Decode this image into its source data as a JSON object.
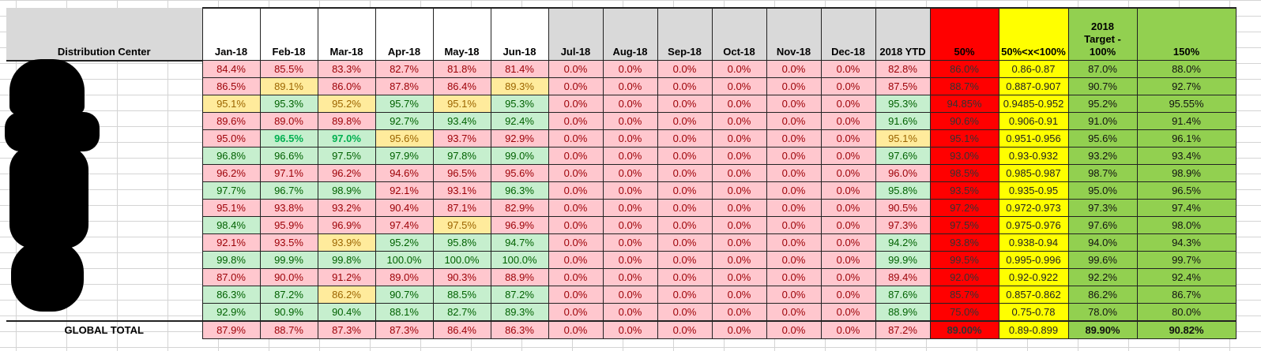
{
  "sheet": {
    "dc_header": "Distribution Center",
    "month_headers": [
      "Jan-18",
      "Feb-18",
      "Mar-18",
      "Apr-18",
      "May-18",
      "Jun-18",
      "Jul-18",
      "Aug-18",
      "Sep-18",
      "Oct-18",
      "Nov-18",
      "Dec-18",
      "2018 YTD"
    ],
    "target_headers": [
      "50%",
      "50%<x<100%",
      "2018 Target - 100%",
      "150%"
    ],
    "target_header_lines": {
      "t100": [
        "2018",
        "Target -",
        "100%"
      ]
    },
    "total_label": "GLOBAL TOTAL",
    "colors": {
      "red_fill": "#ffc7ce",
      "yellow_fill": "#ffeb9c",
      "green_fill": "#c6efce",
      "target_50": "#ff0000",
      "target_mid": "#ffff00",
      "target_100": "#92d050",
      "future_header": "#d9d9d9"
    },
    "rows": [
      {
        "dc": "",
        "cells": [
          [
            "84.4%",
            "r"
          ],
          [
            "85.5%",
            "r"
          ],
          [
            "83.3%",
            "r"
          ],
          [
            "82.7%",
            "r"
          ],
          [
            "81.8%",
            "r"
          ],
          [
            "81.4%",
            "r"
          ],
          [
            "0.0%",
            "r"
          ],
          [
            "0.0%",
            "r"
          ],
          [
            "0.0%",
            "r"
          ],
          [
            "0.0%",
            "r"
          ],
          [
            "0.0%",
            "r"
          ],
          [
            "0.0%",
            "r"
          ],
          [
            "82.8%",
            "r"
          ]
        ],
        "targets": [
          "86.0%",
          "0.86-0.87",
          "87.0%",
          "88.0%"
        ]
      },
      {
        "dc": "",
        "cells": [
          [
            "86.5%",
            "r"
          ],
          [
            "89.1%",
            "y"
          ],
          [
            "86.0%",
            "r"
          ],
          [
            "87.8%",
            "r"
          ],
          [
            "86.4%",
            "r"
          ],
          [
            "89.3%",
            "y"
          ],
          [
            "0.0%",
            "r"
          ],
          [
            "0.0%",
            "r"
          ],
          [
            "0.0%",
            "r"
          ],
          [
            "0.0%",
            "r"
          ],
          [
            "0.0%",
            "r"
          ],
          [
            "0.0%",
            "r"
          ],
          [
            "87.5%",
            "r"
          ]
        ],
        "targets": [
          "88.7%",
          "0.887-0.907",
          "90.7%",
          "92.7%"
        ]
      },
      {
        "dc": "",
        "cells": [
          [
            "95.1%",
            "y"
          ],
          [
            "95.3%",
            "g"
          ],
          [
            "95.2%",
            "y"
          ],
          [
            "95.7%",
            "g"
          ],
          [
            "95.1%",
            "y"
          ],
          [
            "95.3%",
            "g"
          ],
          [
            "0.0%",
            "r"
          ],
          [
            "0.0%",
            "r"
          ],
          [
            "0.0%",
            "r"
          ],
          [
            "0.0%",
            "r"
          ],
          [
            "0.0%",
            "r"
          ],
          [
            "0.0%",
            "r"
          ],
          [
            "95.3%",
            "g"
          ]
        ],
        "targets": [
          "94.85%",
          "0.9485-0.952",
          "95.2%",
          "95.55%"
        ]
      },
      {
        "dc": "",
        "cells": [
          [
            "89.6%",
            "r"
          ],
          [
            "89.0%",
            "r"
          ],
          [
            "89.8%",
            "r"
          ],
          [
            "92.7%",
            "g"
          ],
          [
            "93.4%",
            "g"
          ],
          [
            "92.4%",
            "g"
          ],
          [
            "0.0%",
            "r"
          ],
          [
            "0.0%",
            "r"
          ],
          [
            "0.0%",
            "r"
          ],
          [
            "0.0%",
            "r"
          ],
          [
            "0.0%",
            "r"
          ],
          [
            "0.0%",
            "r"
          ],
          [
            "91.6%",
            "g"
          ]
        ],
        "targets": [
          "90.6%",
          "0.906-0.91",
          "91.0%",
          "91.4%"
        ]
      },
      {
        "dc": "",
        "cells": [
          [
            "95.0%",
            "r"
          ],
          [
            "96.5%",
            "gb"
          ],
          [
            "97.0%",
            "gb"
          ],
          [
            "95.6%",
            "y"
          ],
          [
            "93.7%",
            "r"
          ],
          [
            "92.9%",
            "r"
          ],
          [
            "0.0%",
            "r"
          ],
          [
            "0.0%",
            "r"
          ],
          [
            "0.0%",
            "r"
          ],
          [
            "0.0%",
            "r"
          ],
          [
            "0.0%",
            "r"
          ],
          [
            "0.0%",
            "r"
          ],
          [
            "95.1%",
            "y"
          ]
        ],
        "targets": [
          "95.1%",
          "0.951-0.956",
          "95.6%",
          "96.1%"
        ]
      },
      {
        "dc": "",
        "cells": [
          [
            "96.8%",
            "g"
          ],
          [
            "96.6%",
            "g"
          ],
          [
            "97.5%",
            "g"
          ],
          [
            "97.9%",
            "g"
          ],
          [
            "97.8%",
            "g"
          ],
          [
            "99.0%",
            "g"
          ],
          [
            "0.0%",
            "r"
          ],
          [
            "0.0%",
            "r"
          ],
          [
            "0.0%",
            "r"
          ],
          [
            "0.0%",
            "r"
          ],
          [
            "0.0%",
            "r"
          ],
          [
            "0.0%",
            "r"
          ],
          [
            "97.6%",
            "g"
          ]
        ],
        "targets": [
          "93.0%",
          "0.93-0.932",
          "93.2%",
          "93.4%"
        ]
      },
      {
        "dc": "",
        "cells": [
          [
            "96.2%",
            "r"
          ],
          [
            "97.1%",
            "r"
          ],
          [
            "96.2%",
            "r"
          ],
          [
            "94.6%",
            "r"
          ],
          [
            "96.5%",
            "r"
          ],
          [
            "95.6%",
            "r"
          ],
          [
            "0.0%",
            "r"
          ],
          [
            "0.0%",
            "r"
          ],
          [
            "0.0%",
            "r"
          ],
          [
            "0.0%",
            "r"
          ],
          [
            "0.0%",
            "r"
          ],
          [
            "0.0%",
            "r"
          ],
          [
            "96.0%",
            "r"
          ]
        ],
        "targets": [
          "98.5%",
          "0.985-0.987",
          "98.7%",
          "98.9%"
        ]
      },
      {
        "dc": "",
        "cells": [
          [
            "97.7%",
            "g"
          ],
          [
            "96.7%",
            "g"
          ],
          [
            "98.9%",
            "g"
          ],
          [
            "92.1%",
            "r"
          ],
          [
            "93.1%",
            "r"
          ],
          [
            "96.3%",
            "g"
          ],
          [
            "0.0%",
            "r"
          ],
          [
            "0.0%",
            "r"
          ],
          [
            "0.0%",
            "r"
          ],
          [
            "0.0%",
            "r"
          ],
          [
            "0.0%",
            "r"
          ],
          [
            "0.0%",
            "r"
          ],
          [
            "95.8%",
            "g"
          ]
        ],
        "targets": [
          "93.5%",
          "0.935-0.95",
          "95.0%",
          "96.5%"
        ]
      },
      {
        "dc": "",
        "cells": [
          [
            "95.1%",
            "r"
          ],
          [
            "93.8%",
            "r"
          ],
          [
            "93.2%",
            "r"
          ],
          [
            "90.4%",
            "r"
          ],
          [
            "87.1%",
            "r"
          ],
          [
            "82.9%",
            "r"
          ],
          [
            "0.0%",
            "r"
          ],
          [
            "0.0%",
            "r"
          ],
          [
            "0.0%",
            "r"
          ],
          [
            "0.0%",
            "r"
          ],
          [
            "0.0%",
            "r"
          ],
          [
            "0.0%",
            "r"
          ],
          [
            "90.5%",
            "r"
          ]
        ],
        "targets": [
          "97.2%",
          "0.972-0.973",
          "97.3%",
          "97.4%"
        ]
      },
      {
        "dc": "",
        "cells": [
          [
            "98.4%",
            "g"
          ],
          [
            "95.9%",
            "r"
          ],
          [
            "96.9%",
            "r"
          ],
          [
            "97.4%",
            "r"
          ],
          [
            "97.5%",
            "y"
          ],
          [
            "96.9%",
            "r"
          ],
          [
            "0.0%",
            "r"
          ],
          [
            "0.0%",
            "r"
          ],
          [
            "0.0%",
            "r"
          ],
          [
            "0.0%",
            "r"
          ],
          [
            "0.0%",
            "r"
          ],
          [
            "0.0%",
            "r"
          ],
          [
            "97.3%",
            "r"
          ]
        ],
        "targets": [
          "97.5%",
          "0.975-0.976",
          "97.6%",
          "98.0%"
        ]
      },
      {
        "dc": "",
        "cells": [
          [
            "92.1%",
            "r"
          ],
          [
            "93.5%",
            "r"
          ],
          [
            "93.9%",
            "y"
          ],
          [
            "95.2%",
            "g"
          ],
          [
            "95.8%",
            "g"
          ],
          [
            "94.7%",
            "g"
          ],
          [
            "0.0%",
            "r"
          ],
          [
            "0.0%",
            "r"
          ],
          [
            "0.0%",
            "r"
          ],
          [
            "0.0%",
            "r"
          ],
          [
            "0.0%",
            "r"
          ],
          [
            "0.0%",
            "r"
          ],
          [
            "94.2%",
            "g"
          ]
        ],
        "targets": [
          "93.8%",
          "0.938-0.94",
          "94.0%",
          "94.3%"
        ]
      },
      {
        "dc": "",
        "cells": [
          [
            "99.8%",
            "g"
          ],
          [
            "99.9%",
            "g"
          ],
          [
            "99.8%",
            "g"
          ],
          [
            "100.0%",
            "g"
          ],
          [
            "100.0%",
            "g"
          ],
          [
            "100.0%",
            "g"
          ],
          [
            "0.0%",
            "r"
          ],
          [
            "0.0%",
            "r"
          ],
          [
            "0.0%",
            "r"
          ],
          [
            "0.0%",
            "r"
          ],
          [
            "0.0%",
            "r"
          ],
          [
            "0.0%",
            "r"
          ],
          [
            "99.9%",
            "g"
          ]
        ],
        "targets": [
          "99.5%",
          "0.995-0.996",
          "99.6%",
          "99.7%"
        ]
      },
      {
        "dc": "",
        "cells": [
          [
            "87.0%",
            "r"
          ],
          [
            "90.0%",
            "r"
          ],
          [
            "91.2%",
            "r"
          ],
          [
            "89.0%",
            "r"
          ],
          [
            "90.3%",
            "r"
          ],
          [
            "88.9%",
            "r"
          ],
          [
            "0.0%",
            "r"
          ],
          [
            "0.0%",
            "r"
          ],
          [
            "0.0%",
            "r"
          ],
          [
            "0.0%",
            "r"
          ],
          [
            "0.0%",
            "r"
          ],
          [
            "0.0%",
            "r"
          ],
          [
            "89.4%",
            "r"
          ]
        ],
        "targets": [
          "92.0%",
          "0.92-0.922",
          "92.2%",
          "92.4%"
        ]
      },
      {
        "dc": "",
        "cells": [
          [
            "86.3%",
            "g"
          ],
          [
            "87.2%",
            "g"
          ],
          [
            "86.2%",
            "y"
          ],
          [
            "90.7%",
            "g"
          ],
          [
            "88.5%",
            "g"
          ],
          [
            "87.2%",
            "g"
          ],
          [
            "0.0%",
            "r"
          ],
          [
            "0.0%",
            "r"
          ],
          [
            "0.0%",
            "r"
          ],
          [
            "0.0%",
            "r"
          ],
          [
            "0.0%",
            "r"
          ],
          [
            "0.0%",
            "r"
          ],
          [
            "87.6%",
            "g"
          ]
        ],
        "targets": [
          "85.7%",
          "0.857-0.862",
          "86.2%",
          "86.7%"
        ]
      },
      {
        "dc": "",
        "cells": [
          [
            "92.9%",
            "g"
          ],
          [
            "90.9%",
            "g"
          ],
          [
            "90.4%",
            "g"
          ],
          [
            "88.1%",
            "g"
          ],
          [
            "82.7%",
            "g"
          ],
          [
            "89.3%",
            "g"
          ],
          [
            "0.0%",
            "r"
          ],
          [
            "0.0%",
            "r"
          ],
          [
            "0.0%",
            "r"
          ],
          [
            "0.0%",
            "r"
          ],
          [
            "0.0%",
            "r"
          ],
          [
            "0.0%",
            "r"
          ],
          [
            "88.9%",
            "g"
          ]
        ],
        "targets": [
          "75.0%",
          "0.75-0.78",
          "78.0%",
          "80.0%"
        ]
      }
    ],
    "total": {
      "cells": [
        "87.9%",
        "88.7%",
        "87.3%",
        "87.3%",
        "86.4%",
        "86.3%",
        "0.0%",
        "0.0%",
        "0.0%",
        "0.0%",
        "0.0%",
        "0.0%",
        "87.2%"
      ],
      "targets": [
        "89.00%",
        "0.89-0.899",
        "89.90%",
        "90.82%"
      ]
    }
  }
}
